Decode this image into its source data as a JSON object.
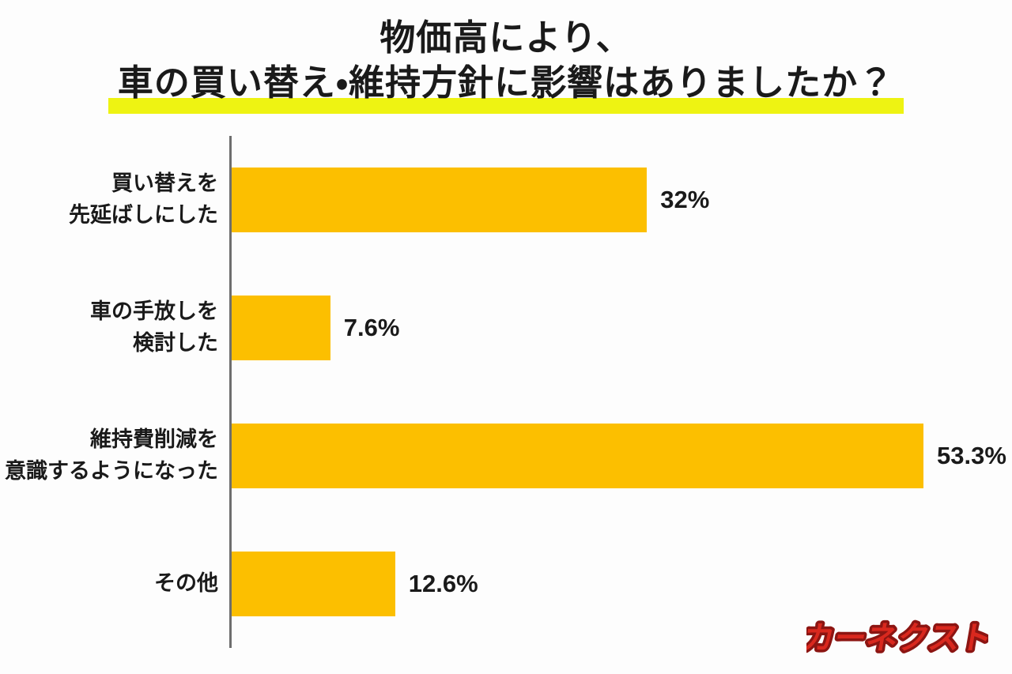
{
  "title": {
    "line1": "物価高により、",
    "line2": "車の買い替え・維持方針に影響はありましたか？"
  },
  "chart_data": {
    "type": "bar",
    "orientation": "horizontal",
    "title": "物価高により、車の買い替え・維持方針に影響はありましたか？",
    "categories": [
      "買い替えを先延ばしにした",
      "車の手放しを検討した",
      "維持費削減を意識するようになった",
      "その他"
    ],
    "values": [
      32,
      7.6,
      53.3,
      12.6
    ],
    "unit": "%",
    "xlim": [
      0,
      55
    ],
    "grid": false,
    "legend": false,
    "rows": [
      {
        "label_line1": "買い替えを",
        "label_line2": "先延ばしにした",
        "value": 32,
        "value_label": "32%"
      },
      {
        "label_line1": "車の手放しを",
        "label_line2": "検討した",
        "value": 7.6,
        "value_label": "7.6%"
      },
      {
        "label_line1": "維持費削減を",
        "label_line2": "意識するようになった",
        "value": 53.3,
        "value_label": "53.3%"
      },
      {
        "label_line1": "その他",
        "label_line2": "",
        "value": 12.6,
        "value_label": "12.6%"
      }
    ]
  },
  "branding": {
    "logo_text": "カーネクスト"
  },
  "colors": {
    "bar": "#FCBF00",
    "title_highlight": "#EEF312",
    "axis_line": "#6E6E6E",
    "text": "#1A1A1A",
    "logo_fill": "#D9281E",
    "logo_outline": "#8C1512",
    "background": "#FDFDFD"
  }
}
